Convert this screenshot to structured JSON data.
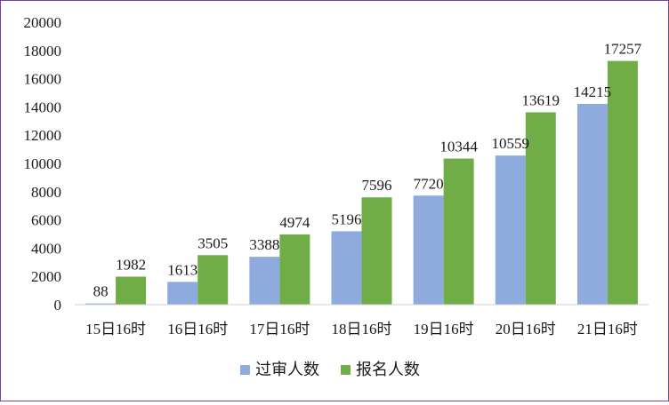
{
  "chart_data": {
    "type": "bar",
    "title": "",
    "xlabel": "",
    "ylabel": "",
    "categories": [
      "15日16时",
      "16日16时",
      "17日16时",
      "18日16时",
      "19日16时",
      "20日16时",
      "21日16时"
    ],
    "series": [
      {
        "name": "过审人数",
        "color": "#8faadc",
        "values": [
          88,
          1613,
          3388,
          5196,
          7720,
          10559,
          14215
        ]
      },
      {
        "name": "报名人数",
        "color": "#70ad47",
        "values": [
          1982,
          3505,
          4974,
          7596,
          10344,
          13619,
          17257
        ]
      }
    ],
    "ylim": [
      0,
      20000
    ],
    "yticks": [
      0,
      2000,
      4000,
      6000,
      8000,
      10000,
      12000,
      14000,
      16000,
      18000,
      20000
    ],
    "grid": false,
    "data_labels": true,
    "legend": "bottom",
    "frame_color": "#7b3fa0"
  }
}
